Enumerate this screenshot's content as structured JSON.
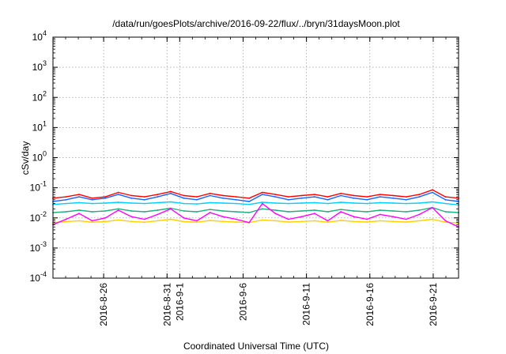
{
  "chart_data": {
    "type": "line",
    "title": "/data/run/goesPlots/archive/2016-09-22/flux/../bryn/31daysMoon.plot",
    "xlabel": "Coordinated Universal Time (UTC)",
    "ylabel": "cSv/day",
    "y_scale": "log",
    "ylim_exponents": [
      -4,
      4
    ],
    "y_ticks": [
      {
        "base": "10",
        "exp": "-4"
      },
      {
        "base": "10",
        "exp": "-3"
      },
      {
        "base": "10",
        "exp": "-2"
      },
      {
        "base": "10",
        "exp": "-1"
      },
      {
        "base": "10",
        "exp": "0"
      },
      {
        "base": "10",
        "exp": "1"
      },
      {
        "base": "10",
        "exp": "2"
      },
      {
        "base": "10",
        "exp": "3"
      },
      {
        "base": "10",
        "exp": "4"
      }
    ],
    "xlim": [
      "2016-08-22",
      "2016-09-23"
    ],
    "x_ticks": [
      "2016-8-26",
      "2016-8-31",
      "2016-9-1",
      "2016-9-6",
      "2016-9-11",
      "2016-9-16",
      "2016-9-21"
    ],
    "grid": true,
    "series": [
      {
        "color": "#ff0000",
        "values": [
          0.045,
          0.05,
          0.06,
          0.045,
          0.05,
          0.07,
          0.055,
          0.05,
          0.06,
          0.075,
          0.055,
          0.05,
          0.065,
          0.055,
          0.05,
          0.045,
          0.07,
          0.06,
          0.05,
          0.055,
          0.06,
          0.05,
          0.065,
          0.055,
          0.05,
          0.06,
          0.055,
          0.05,
          0.06,
          0.085,
          0.05,
          0.045
        ]
      },
      {
        "color": "#1565ff",
        "values": [
          0.035,
          0.04,
          0.05,
          0.04,
          0.045,
          0.06,
          0.045,
          0.04,
          0.05,
          0.065,
          0.045,
          0.04,
          0.055,
          0.045,
          0.04,
          0.035,
          0.06,
          0.05,
          0.04,
          0.045,
          0.05,
          0.04,
          0.055,
          0.045,
          0.04,
          0.05,
          0.045,
          0.04,
          0.05,
          0.07,
          0.04,
          0.035
        ]
      },
      {
        "color": "#00d0ff",
        "values": [
          0.028,
          0.03,
          0.032,
          0.03,
          0.031,
          0.033,
          0.031,
          0.03,
          0.032,
          0.034,
          0.03,
          0.029,
          0.032,
          0.031,
          0.03,
          0.028,
          0.033,
          0.031,
          0.03,
          0.031,
          0.032,
          0.03,
          0.033,
          0.031,
          0.03,
          0.032,
          0.031,
          0.03,
          0.031,
          0.034,
          0.03,
          0.027
        ]
      },
      {
        "color": "#20b080",
        "values": [
          0.015,
          0.016,
          0.018,
          0.016,
          0.017,
          0.02,
          0.017,
          0.016,
          0.018,
          0.021,
          0.017,
          0.016,
          0.019,
          0.017,
          0.016,
          0.015,
          0.02,
          0.018,
          0.016,
          0.017,
          0.018,
          0.016,
          0.019,
          0.017,
          0.016,
          0.018,
          0.017,
          0.016,
          0.018,
          0.022,
          0.016,
          0.015
        ]
      },
      {
        "color": "#ffd000",
        "values": [
          0.007,
          0.0075,
          0.008,
          0.0072,
          0.0075,
          0.0085,
          0.0076,
          0.0072,
          0.008,
          0.009,
          0.0075,
          0.0072,
          0.0082,
          0.0076,
          0.0073,
          0.007,
          0.0085,
          0.008,
          0.0073,
          0.0076,
          0.008,
          0.0072,
          0.0082,
          0.0076,
          0.0073,
          0.008,
          0.0076,
          0.0073,
          0.008,
          0.009,
          0.0072,
          0.0068
        ]
      },
      {
        "color": "#ff00ff",
        "values": [
          0.006,
          0.009,
          0.014,
          0.008,
          0.01,
          0.018,
          0.011,
          0.009,
          0.013,
          0.02,
          0.01,
          0.008,
          0.015,
          0.011,
          0.009,
          0.007,
          0.03,
          0.014,
          0.009,
          0.011,
          0.014,
          0.008,
          0.016,
          0.011,
          0.009,
          0.013,
          0.011,
          0.009,
          0.013,
          0.022,
          0.008,
          0.005
        ]
      }
    ],
    "series_colors": [
      "#ff0000",
      "#1565ff",
      "#00d0ff",
      "#20b080",
      "#ffd000",
      "#ff00ff"
    ]
  }
}
